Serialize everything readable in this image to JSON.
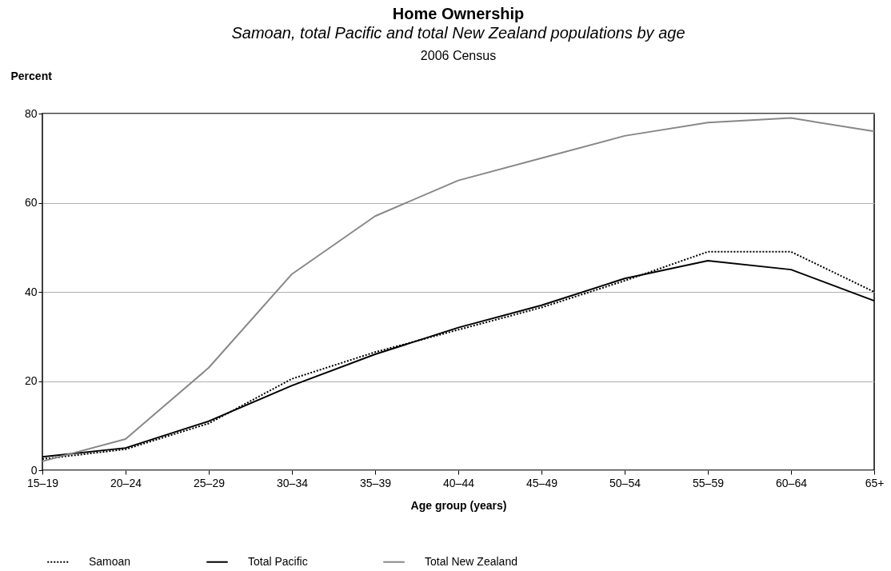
{
  "chart_data": {
    "type": "line",
    "title": "Home Ownership",
    "subtitle": "Samoan, total Pacific and total New Zealand populations by age",
    "annotations": [
      "2006 Census"
    ],
    "xlabel": "Age group (years)",
    "ylabel": "Percent",
    "categories": [
      "15–19",
      "20–24",
      "25–29",
      "30–34",
      "35–39",
      "40–44",
      "45–49",
      "50–54",
      "55–59",
      "60–64",
      "65+"
    ],
    "series": [
      {
        "name": "Samoan",
        "color": "#000000",
        "line_style": "dotted",
        "values": [
          2.5,
          4.7,
          10.5,
          20.5,
          26.5,
          31.5,
          36.5,
          42.5,
          49,
          49,
          40
        ]
      },
      {
        "name": "Total Pacific",
        "color": "#000000",
        "line_style": "solid",
        "values": [
          3,
          5,
          11,
          19,
          26,
          32,
          37,
          43,
          47,
          45,
          38
        ]
      },
      {
        "name": "Total New Zealand",
        "color": "#888888",
        "line_style": "solid",
        "values": [
          2,
          7,
          23,
          44,
          57,
          65,
          70,
          75,
          78,
          79,
          76
        ]
      }
    ],
    "ylim": [
      0,
      80
    ],
    "yticks": [
      0,
      20,
      40,
      60,
      80
    ],
    "grid": "y",
    "legend": "bottom",
    "marker": "none"
  }
}
